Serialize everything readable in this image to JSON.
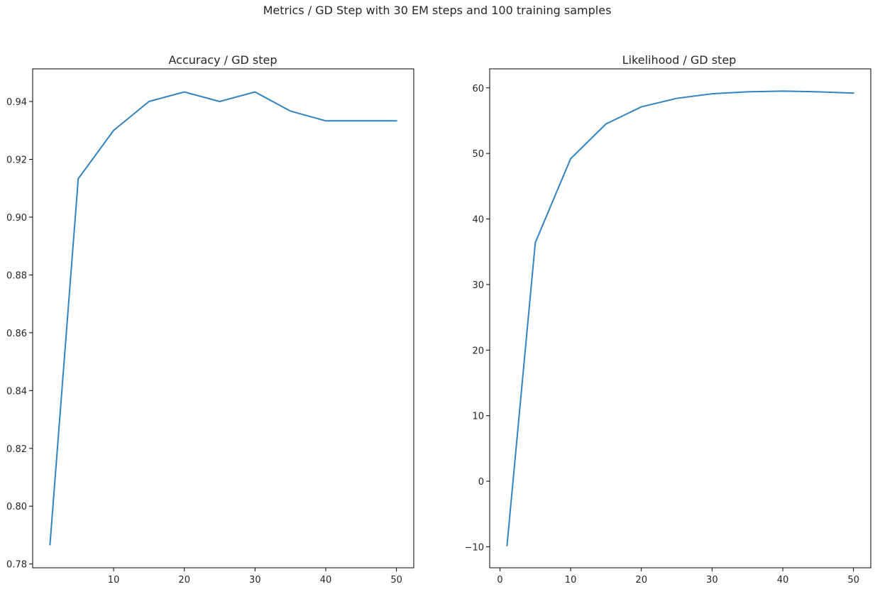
{
  "suptitle": "Metrics / GD Step with 30 EM steps and 100 training samples",
  "chart_data": [
    {
      "type": "line",
      "title": "Accuracy / GD step",
      "xlabel": "",
      "ylabel": "",
      "xlim": [
        -1.45,
        52.45
      ],
      "ylim": [
        0.7787,
        0.9513
      ],
      "xticks": [
        {
          "value": 10,
          "label": "10"
        },
        {
          "value": 20,
          "label": "20"
        },
        {
          "value": 30,
          "label": "30"
        },
        {
          "value": 40,
          "label": "40"
        },
        {
          "value": 50,
          "label": "50"
        }
      ],
      "yticks": [
        {
          "value": 0.78,
          "label": "0.78"
        },
        {
          "value": 0.8,
          "label": "0.80"
        },
        {
          "value": 0.82,
          "label": "0.82"
        },
        {
          "value": 0.84,
          "label": "0.84"
        },
        {
          "value": 0.86,
          "label": "0.86"
        },
        {
          "value": 0.88,
          "label": "0.88"
        },
        {
          "value": 0.9,
          "label": "0.90"
        },
        {
          "value": 0.92,
          "label": "0.92"
        },
        {
          "value": 0.94,
          "label": "0.94"
        }
      ],
      "grid": false,
      "line_color": "#3282bd",
      "series": [
        {
          "x": [
            1,
            5,
            10,
            15,
            20,
            25,
            30,
            35,
            40,
            45,
            50
          ],
          "y": [
            0.7867,
            0.9133,
            0.93,
            0.94,
            0.9433,
            0.94,
            0.9433,
            0.9367,
            0.9333,
            0.9333,
            0.9333
          ]
        }
      ]
    },
    {
      "type": "line",
      "title": "Likelihood / GD step",
      "xlabel": "",
      "ylabel": "",
      "xlim": [
        -1.45,
        52.45
      ],
      "ylim": [
        -13.2,
        62.9
      ],
      "xticks": [
        {
          "value": 0,
          "label": "0"
        },
        {
          "value": 10,
          "label": "10"
        },
        {
          "value": 20,
          "label": "20"
        },
        {
          "value": 30,
          "label": "30"
        },
        {
          "value": 40,
          "label": "40"
        },
        {
          "value": 50,
          "label": "50"
        }
      ],
      "yticks": [
        {
          "value": -10,
          "label": "−10"
        },
        {
          "value": 0,
          "label": "0"
        },
        {
          "value": 10,
          "label": "10"
        },
        {
          "value": 20,
          "label": "20"
        },
        {
          "value": 30,
          "label": "30"
        },
        {
          "value": 40,
          "label": "40"
        },
        {
          "value": 50,
          "label": "50"
        },
        {
          "value": 60,
          "label": "60"
        }
      ],
      "grid": false,
      "line_color": "#3282bd",
      "series": [
        {
          "x": [
            1,
            5,
            10,
            15,
            20,
            25,
            30,
            35,
            40,
            45,
            50
          ],
          "y": [
            -9.8,
            36.4,
            49.2,
            54.5,
            57.1,
            58.4,
            59.1,
            59.4,
            59.5,
            59.4,
            59.2
          ]
        }
      ]
    }
  ]
}
